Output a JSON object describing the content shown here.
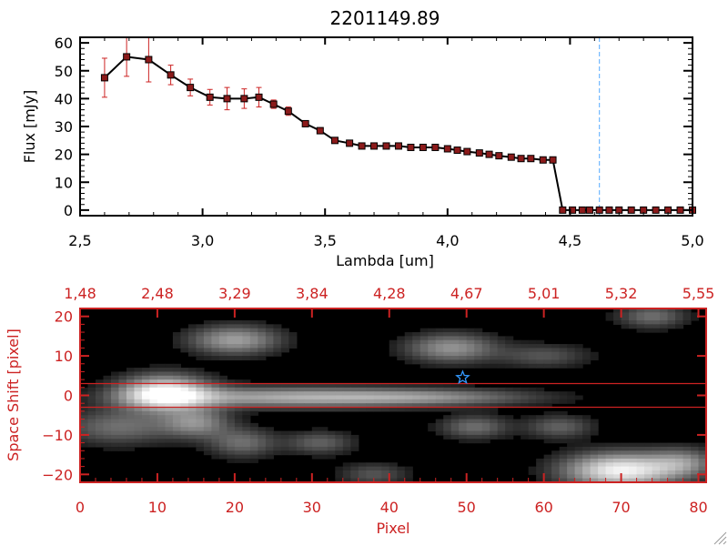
{
  "chart_data": [
    {
      "type": "line",
      "title": "2201149.89",
      "xlabel": "Lambda [um]",
      "ylabel": "Flux [mJy]",
      "xlim": [
        2.5,
        5.0
      ],
      "ylim": [
        -2,
        62
      ],
      "xticks": [
        "2.5",
        "3.0",
        "3.5",
        "4.0",
        "4.5",
        "5.0"
      ],
      "yticks": [
        "0",
        "10",
        "20",
        "30",
        "40",
        "50",
        "60"
      ],
      "grid": false,
      "line_color": "#000000",
      "marker_color": "#8b1a1a",
      "errorbar_color": "#cc2222",
      "cutoff_line": {
        "x": 4.62,
        "color": "#55aaff"
      },
      "series": [
        {
          "x": [
            2.6,
            2.69,
            2.78,
            2.87,
            2.95,
            3.03,
            3.1,
            3.17,
            3.23,
            3.29,
            3.35,
            3.42,
            3.48,
            3.54,
            3.6,
            3.65,
            3.7,
            3.75,
            3.8,
            3.85,
            3.9,
            3.95,
            4.0,
            4.04,
            4.08,
            4.13,
            4.17,
            4.21,
            4.26,
            4.3,
            4.34,
            4.39,
            4.43,
            4.47,
            4.51,
            4.55,
            4.58,
            4.62,
            4.66,
            4.7,
            4.75,
            4.8,
            4.85,
            4.9,
            4.95,
            5.0
          ],
          "y": [
            47.5,
            55.0,
            54.0,
            48.5,
            44.0,
            40.5,
            40.0,
            40.0,
            40.5,
            38.0,
            35.5,
            31.0,
            28.5,
            25.0,
            24.0,
            23.0,
            23.0,
            23.0,
            23.0,
            22.5,
            22.5,
            22.5,
            22.0,
            21.5,
            21.0,
            20.5,
            20.0,
            19.5,
            19.0,
            18.5,
            18.5,
            18.0,
            18.0,
            0,
            0,
            0,
            0,
            0,
            0,
            0,
            0,
            0,
            0,
            0,
            0,
            0
          ],
          "yerr": [
            7.0,
            7.0,
            8.0,
            3.5,
            3.0,
            2.8,
            4.0,
            3.5,
            3.5,
            1.5,
            1.5,
            1.0,
            1.0,
            0.8,
            0.8,
            0.8,
            0.8,
            0.8,
            0.8,
            0.5,
            0.5,
            0.5,
            0.5,
            0.5,
            0.5,
            0.5,
            0.5,
            0.5,
            0.5,
            0.5,
            0.5,
            0.5,
            0.5,
            0,
            0,
            0,
            0,
            0,
            0,
            0,
            0,
            0,
            0,
            0,
            0,
            0
          ]
        }
      ]
    },
    {
      "type": "heatmap",
      "xlabel": "Pixel",
      "ylabel": "Space Shift [pixel]",
      "xlim": [
        0,
        81
      ],
      "ylim": [
        -22,
        22
      ],
      "xticks": [
        "0",
        "10",
        "20",
        "30",
        "40",
        "50",
        "60",
        "70",
        "80"
      ],
      "yticks": [
        "-20",
        "-10",
        "0",
        "10",
        "20"
      ],
      "top_axis_ticks": [
        "1.48",
        "2.48",
        "3.29",
        "3.84",
        "4.28",
        "4.67",
        "5.01",
        "5.32",
        "5.55"
      ],
      "axis_color": "#cc2222",
      "background": "#000000",
      "extraction_window": [
        -3,
        3
      ],
      "marker": {
        "x": 49.5,
        "y": 4.5,
        "color": "#3399ff",
        "shape": "star"
      },
      "blobs": [
        {
          "x": 11,
          "y": 0.5,
          "sx": 4,
          "sy": 3,
          "v": 1.0
        },
        {
          "x": 26,
          "y": -0.5,
          "sx": 12,
          "sy": 1.8,
          "v": 0.55
        },
        {
          "x": 45,
          "y": -0.5,
          "sx": 10,
          "sy": 1.5,
          "v": 0.4
        },
        {
          "x": 20,
          "y": 14,
          "sx": 4,
          "sy": 2.5,
          "v": 0.55
        },
        {
          "x": 48,
          "y": 12,
          "sx": 4,
          "sy": 2.5,
          "v": 0.5
        },
        {
          "x": 60,
          "y": 10,
          "sx": 4,
          "sy": 2.0,
          "v": 0.25
        },
        {
          "x": 74,
          "y": 20,
          "sx": 3,
          "sy": 2.0,
          "v": 0.35
        },
        {
          "x": 15,
          "y": -7,
          "sx": 3,
          "sy": 2.5,
          "v": 0.45
        },
        {
          "x": 5,
          "y": -8,
          "sx": 5,
          "sy": 3.0,
          "v": 0.35
        },
        {
          "x": 21,
          "y": -12,
          "sx": 3,
          "sy": 2.5,
          "v": 0.35
        },
        {
          "x": 31,
          "y": -12,
          "sx": 3,
          "sy": 2.0,
          "v": 0.3
        },
        {
          "x": 38,
          "y": -20,
          "sx": 3,
          "sy": 2.0,
          "v": 0.25
        },
        {
          "x": 51,
          "y": -8,
          "sx": 3,
          "sy": 2.0,
          "v": 0.35
        },
        {
          "x": 62,
          "y": -8,
          "sx": 3,
          "sy": 2.0,
          "v": 0.3
        },
        {
          "x": 70,
          "y": -19,
          "sx": 5,
          "sy": 3.0,
          "v": 0.95
        },
        {
          "x": 78,
          "y": -17,
          "sx": 3,
          "sy": 2.5,
          "v": 0.4
        }
      ]
    }
  ]
}
